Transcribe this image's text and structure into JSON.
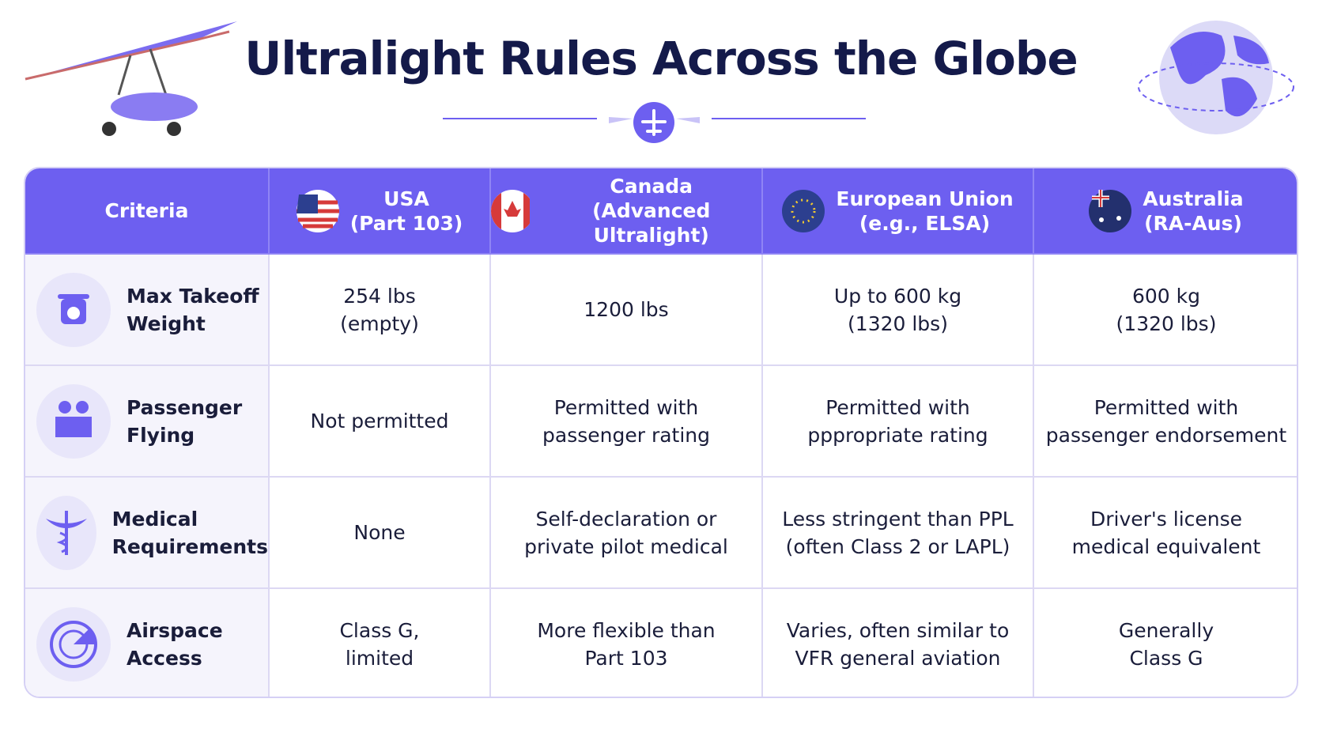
{
  "title": "Ultralight Rules Across the Globe",
  "table": {
    "header": [
      [
        "Criteria"
      ],
      [
        "USA",
        "(Part 103)"
      ],
      [
        "Canada",
        "(Advanced Ultralight)"
      ],
      [
        "European Union",
        "(e.g., ELSA)"
      ],
      [
        "Australia",
        "(RA-Aus)"
      ]
    ],
    "rows": [
      {
        "criterion": [
          "Max Takeoff",
          "Weight"
        ],
        "cells": [
          [
            "254 lbs",
            "(empty)"
          ],
          [
            "1200 lbs"
          ],
          [
            "Up to 600 kg",
            "(1320 lbs)"
          ],
          [
            "600 kg",
            "(1320 lbs)"
          ]
        ]
      },
      {
        "criterion": [
          "Passenger",
          "Flying"
        ],
        "cells": [
          [
            "Not permitted"
          ],
          [
            "Permitted with",
            "passenger rating"
          ],
          [
            "Permitted with",
            "pppropriate rating"
          ],
          [
            "Permitted with",
            "passenger endorsement"
          ]
        ]
      },
      {
        "criterion": [
          "Medical",
          "Requirements"
        ],
        "cells": [
          [
            "None"
          ],
          [
            "Self-declaration or",
            "private pilot medical"
          ],
          [
            "Less stringent than PPL",
            "(often Class 2 or LAPL)"
          ],
          [
            "Driver's license",
            "medical equivalent"
          ]
        ]
      },
      {
        "criterion": [
          "Airspace",
          "Access"
        ],
        "cells": [
          [
            "Class G,",
            "limited"
          ],
          [
            "More flexible than",
            "Part 103"
          ],
          [
            "Varies, often similar to",
            "VFR general aviation"
          ],
          [
            "Generally",
            "Class G"
          ]
        ]
      }
    ]
  }
}
